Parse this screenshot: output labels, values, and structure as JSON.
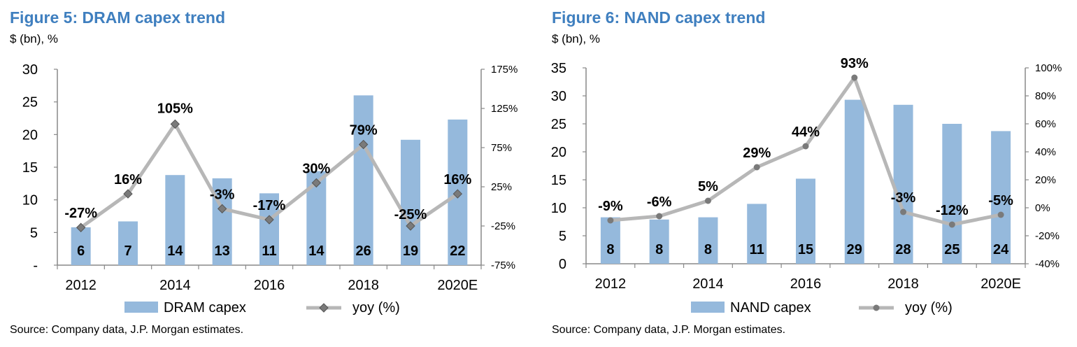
{
  "colors": {
    "title": "#3f7fbf",
    "bar": "#95b9dc",
    "line": "#b7b7b7",
    "marker": "#7a7a7a",
    "axis": "#888888"
  },
  "legend_icons": {
    "bar": "bar-swatch-icon",
    "line": "line-marker-icon"
  },
  "figures": [
    {
      "title": "Figure 5: DRAM capex trend",
      "subtitle": "$ (bn), %",
      "source": "Source: Company data, J.P. Morgan estimates.",
      "legend": {
        "bar": "DRAM capex",
        "line": "yoy (%)"
      },
      "left_ticks": [
        "30",
        "25",
        "20",
        "15",
        "10",
        "5",
        "-"
      ],
      "right_ticks": [
        "175%",
        "125%",
        "75%",
        "25%",
        "-25%",
        "-75%"
      ],
      "x_tick_labels": [
        "2012",
        "2014",
        "2016",
        "2018",
        "2020E"
      ]
    },
    {
      "title": "Figure 6: NAND capex trend",
      "subtitle": "$ (bn), %",
      "source": "Source: Company data, J.P. Morgan estimates.",
      "legend": {
        "bar": "NAND capex",
        "line": "yoy (%)"
      },
      "left_ticks": [
        "35",
        "30",
        "25",
        "20",
        "15",
        "10",
        "5",
        "0"
      ],
      "right_ticks": [
        "100%",
        "80%",
        "60%",
        "40%",
        "20%",
        "0%",
        "-20%",
        "-40%"
      ],
      "x_tick_labels": [
        "2012",
        "2014",
        "2016",
        "2018",
        "2020E"
      ]
    }
  ],
  "chart_data": [
    {
      "type": "bar",
      "title": "Figure 5: DRAM capex trend",
      "categories": [
        "2012",
        "2013",
        "2014",
        "2015",
        "2016",
        "2017",
        "2018",
        "2019",
        "2020E"
      ],
      "series": [
        {
          "name": "DRAM capex",
          "type": "bar",
          "axis": "left",
          "values": [
            5.8,
            6.7,
            13.8,
            13.3,
            11.0,
            14.4,
            26.0,
            19.2,
            22.3
          ],
          "data_labels": [
            "6",
            "7",
            "14",
            "13",
            "11",
            "14",
            "26",
            "19",
            "22"
          ]
        },
        {
          "name": "yoy (%)",
          "type": "line",
          "axis": "right",
          "values": [
            -27,
            16,
            105,
            -3,
            -17,
            30,
            79,
            -25,
            16
          ],
          "data_labels": [
            "-27%",
            "16%",
            "105%",
            "-3%",
            "-17%",
            "30%",
            "79%",
            "-25%",
            "16%"
          ]
        }
      ],
      "ylabel": "$ (bn), %",
      "ylim": [
        0,
        30
      ],
      "y2lim": [
        -75,
        175
      ],
      "grid": false,
      "legend_position": "bottom"
    },
    {
      "type": "bar",
      "title": "Figure 6: NAND capex trend",
      "categories": [
        "2012",
        "2013",
        "2014",
        "2015",
        "2016",
        "2017",
        "2018",
        "2019",
        "2020E"
      ],
      "series": [
        {
          "name": "NAND capex",
          "type": "bar",
          "axis": "left",
          "values": [
            8.3,
            7.9,
            8.3,
            10.7,
            15.2,
            29.3,
            28.4,
            25.0,
            23.7
          ],
          "data_labels": [
            "8",
            "8",
            "8",
            "11",
            "15",
            "29",
            "28",
            "25",
            "24"
          ]
        },
        {
          "name": "yoy (%)",
          "type": "line",
          "axis": "right",
          "values": [
            -9,
            -6,
            5,
            29,
            44,
            93,
            -3,
            -12,
            -5
          ],
          "data_labels": [
            "-9%",
            "-6%",
            "5%",
            "29%",
            "44%",
            "93%",
            "-3%",
            "-12%",
            "-5%"
          ]
        }
      ],
      "ylabel": "$ (bn), %",
      "ylim": [
        0,
        35
      ],
      "y2lim": [
        -40,
        100
      ],
      "grid": false,
      "legend_position": "bottom"
    }
  ]
}
